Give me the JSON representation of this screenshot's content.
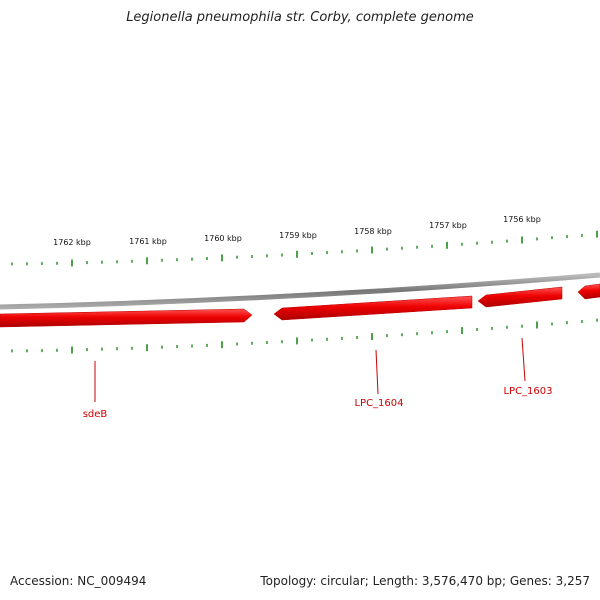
{
  "title": "Legionella pneumophila str. Corby, complete genome",
  "footer": {
    "accession": "Accession: NC_009494",
    "summary": "Topology: circular; Length: 3,576,470 bp; Genes: 3,257"
  },
  "colors": {
    "gene": "#ee1111",
    "tick": "#1e8a1e",
    "backbone": "#888888",
    "label": "#cc0000"
  },
  "scale": {
    "labels": [
      "1762 kbp",
      "1761 kbp",
      "1760 kbp",
      "1759 kbp",
      "1758 kbp",
      "1757 kbp",
      "1756 kbp"
    ]
  },
  "genes": [
    {
      "name": "sdeB"
    },
    {
      "name": "LPC_1604"
    },
    {
      "name": "LPC_1603"
    }
  ]
}
